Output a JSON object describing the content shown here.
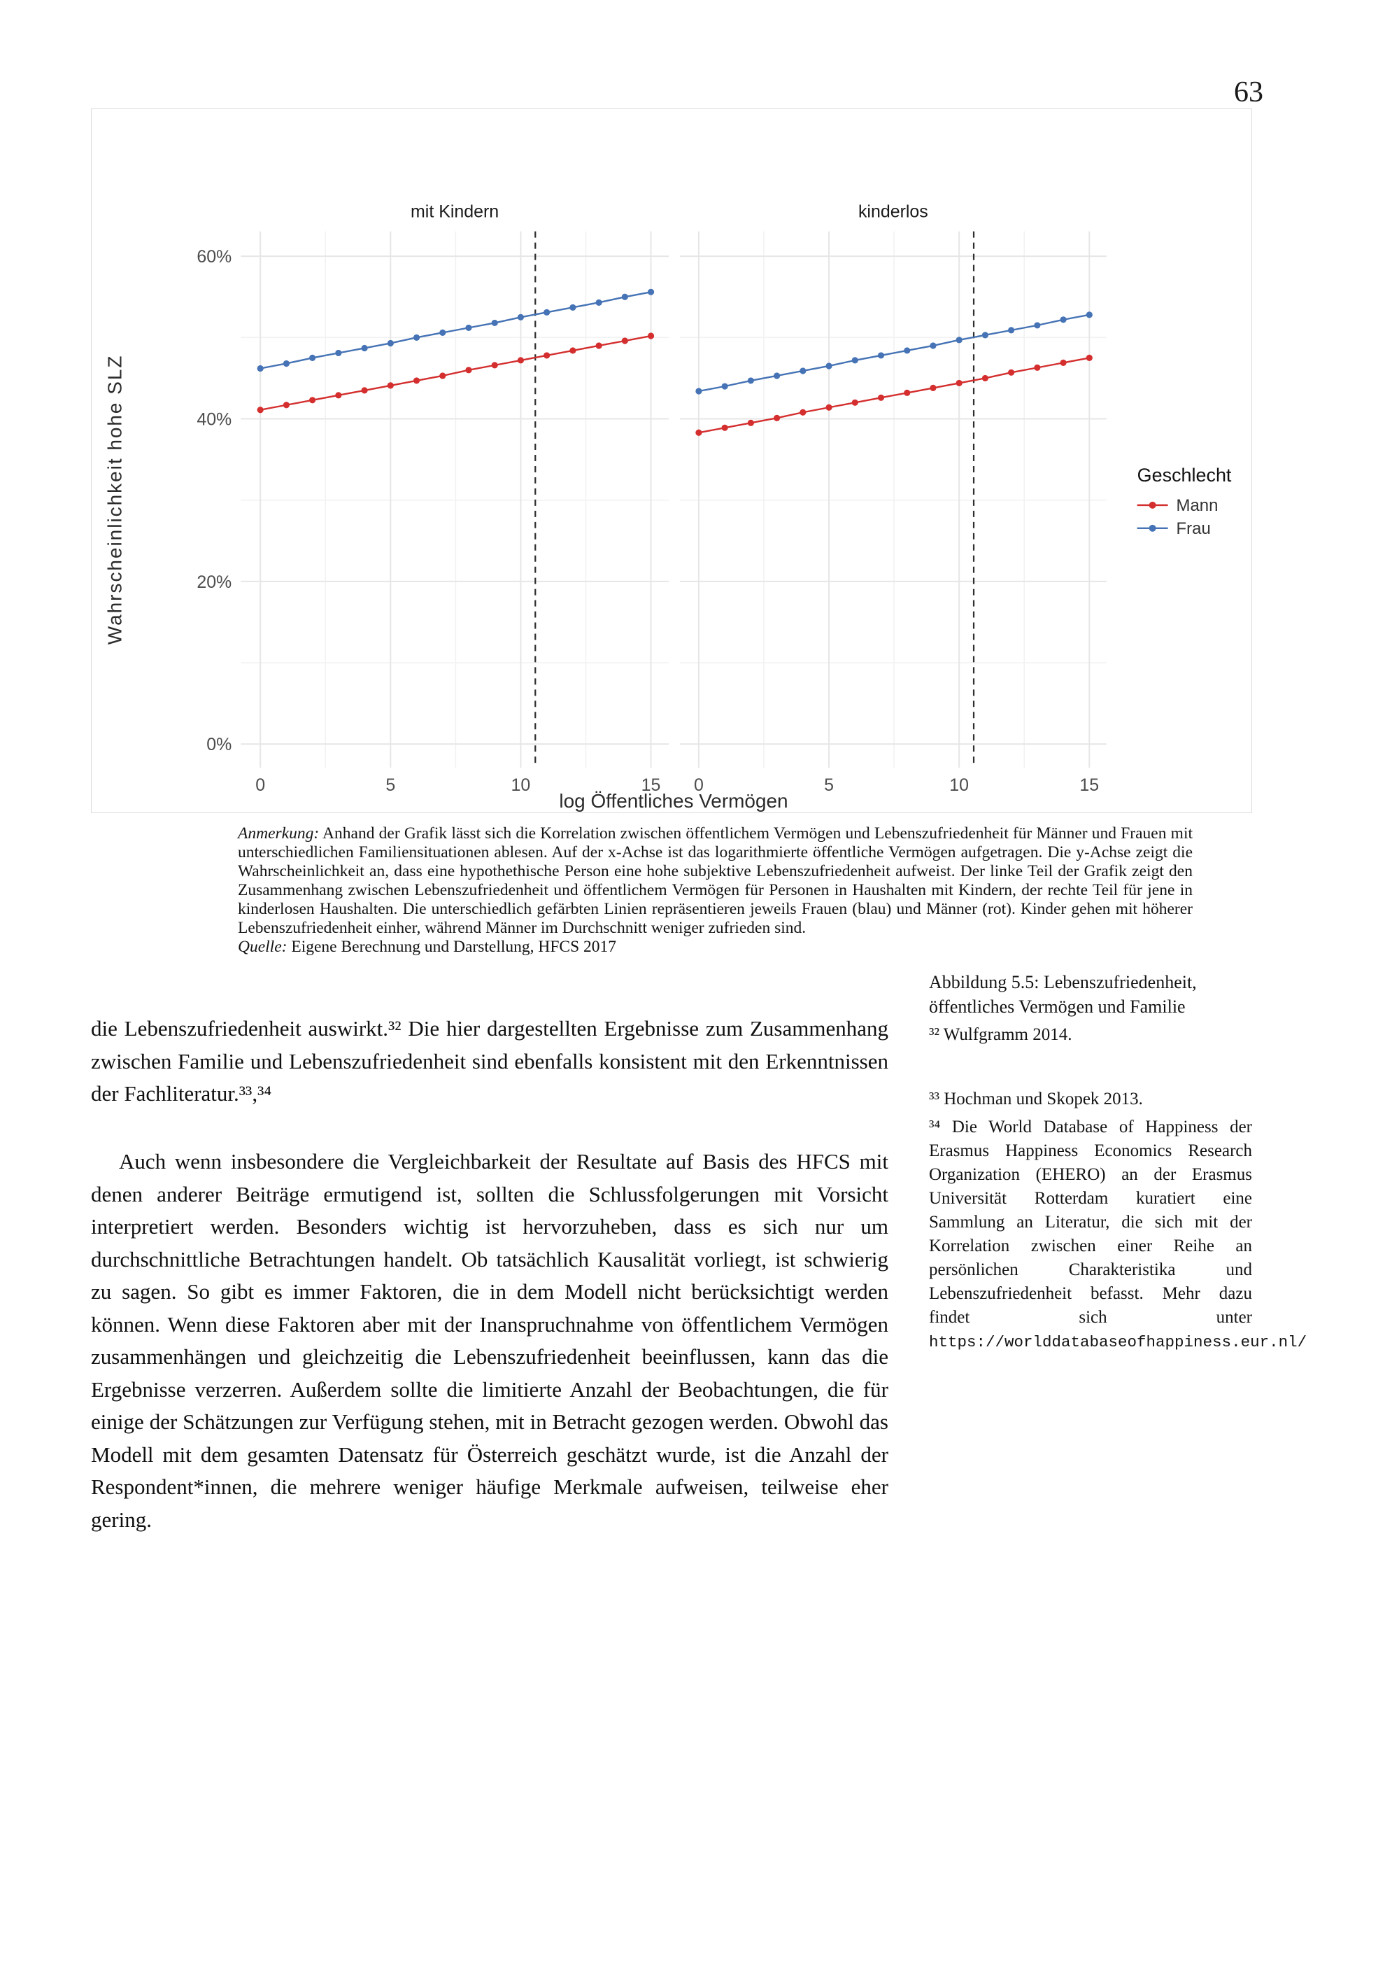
{
  "page": {
    "number": "63"
  },
  "figure": {
    "note": {
      "anmerkung_label": "Anmerkung:",
      "anmerkung_text": " Anhand der Grafik lässt sich die Korrelation zwischen öffentlichem Vermögen und Lebenszufriedenheit für Männer und Frauen mit unterschiedlichen Familiensituationen ablesen. Auf der x-Achse ist das logarithmierte öffentliche Vermögen aufgetragen. Die y-Achse zeigt die Wahrscheinlichkeit an, dass eine hypothethische Person eine hohe subjektive Lebenszufriedenheit aufweist. Der linke Teil der Grafik zeigt den Zusammenhang zwischen Lebenszufriedenheit und öffentlichem Vermögen für Personen in Haushalten mit Kindern, der rechte Teil für jene in kinderlosen Haushalten. Die unterschiedlich gefärbten Linien repräsentieren jeweils Frauen (blau) und Männer (rot). Kinder gehen mit höherer Lebenszufriedenheit einher, während Männer im Durchschnitt weniger zufrieden sind.",
      "quelle_label": "Quelle:",
      "quelle_text": " Eigene Berechnung und Darstellung, HFCS 2017"
    }
  },
  "chart_data": {
    "type": "line",
    "xlabel": "log Öffentliches Vermögen",
    "ylabel": "Wahrscheinlichkeit hohe SLZ",
    "x": [
      0,
      1,
      2,
      3,
      4,
      5,
      6,
      7,
      8,
      9,
      10,
      11,
      12,
      13,
      14,
      15
    ],
    "x_ticks": [
      0,
      5,
      10,
      15
    ],
    "y_ticks_pct": [
      0,
      20,
      40,
      60
    ],
    "y_tick_labels": [
      "0%",
      "20%",
      "40%",
      "60%"
    ],
    "ylim_pct": [
      -3,
      63
    ],
    "grid": true,
    "legend_position": "right",
    "colors": {
      "mann": "#d42e2e",
      "frau": "#4573b5",
      "grid_major": "#e6e6e6",
      "grid_minor": "#f2f2f2",
      "vline": "#2e2e2e"
    },
    "legend": {
      "title": "Geschlecht",
      "items": [
        {
          "label": "Mann",
          "color": "#d42e2e"
        },
        {
          "label": "Frau",
          "color": "#4573b5"
        }
      ]
    },
    "facets": [
      {
        "label": "mit Kindern",
        "vline_x": 10.56,
        "series": [
          {
            "name": "Mann",
            "color": "#d42e2e",
            "values": [
              41.1,
              41.7,
              42.3,
              42.9,
              43.5,
              44.1,
              44.7,
              45.3,
              46.0,
              46.6,
              47.2,
              47.8,
              48.4,
              49.0,
              49.6,
              50.2
            ]
          },
          {
            "name": "Frau",
            "color": "#4573b5",
            "values": [
              46.2,
              46.8,
              47.5,
              48.1,
              48.7,
              49.3,
              50.0,
              50.6,
              51.2,
              51.8,
              52.5,
              53.1,
              53.7,
              54.3,
              55.0,
              55.6
            ]
          }
        ]
      },
      {
        "label": "kinderlos",
        "vline_x": 10.56,
        "series": [
          {
            "name": "Mann",
            "color": "#d42e2e",
            "values": [
              38.3,
              38.9,
              39.5,
              40.1,
              40.8,
              41.4,
              42.0,
              42.6,
              43.2,
              43.8,
              44.4,
              45.0,
              45.7,
              46.3,
              46.9,
              47.5
            ]
          },
          {
            "name": "Frau",
            "color": "#4573b5",
            "values": [
              43.4,
              44.0,
              44.7,
              45.3,
              45.9,
              46.5,
              47.2,
              47.8,
              48.4,
              49.0,
              49.7,
              50.3,
              50.9,
              51.5,
              52.2,
              52.8
            ]
          }
        ]
      }
    ]
  },
  "margin_notes": {
    "figure_caption": "Abbildung 5.5: Lebenszufriedenheit, öffentliches Vermögen und Familie",
    "note32": "³² Wulfgramm 2014.",
    "note33": "³³ Hochman und Skopek 2013.",
    "note34_text": "³⁴ Die World Database of Happiness der Erasmus Happiness Economics Research Organization (EHERO) an der Erasmus Universität Rotterdam kuratiert eine Sammlung an Literatur, die sich mit der Korrelation zwischen einer Reihe an persönlichen Charakteristika und Lebenszufriedenheit befasst. Mehr dazu findet sich unter ",
    "note34_url": "https://worlddatabaseofhappiness.eur.nl/"
  },
  "body": {
    "paragraph1": "die Lebenszufriedenheit auswirkt.³² Die hier dargestellten Ergebnisse zum Zusammenhang zwischen Familie und Lebenszufriedenheit sind ebenfalls konsistent mit den Erkenntnissen der Fachliteratur.³³,³⁴",
    "paragraph2": "Auch wenn insbesondere die Vergleichbarkeit der Resultate auf Basis des HFCS mit denen anderer Beiträge ermutigend ist, sollten die Schlussfolgerungen mit Vorsicht interpretiert werden. Besonders wichtig ist hervorzuheben, dass es sich nur um durchschnittliche Betrachtungen handelt. Ob tatsächlich Kausalität vorliegt, ist schwierig zu sagen. So gibt es immer Faktoren, die in dem Modell nicht berücksichtigt werden können. Wenn diese Faktoren aber mit der Inanspruchnahme von öffentlichem Vermögen zusammenhängen und gleichzeitig die Lebenszufriedenheit beeinflussen, kann das die Ergebnisse verzerren. Außerdem sollte die limitierte Anzahl der Beobachtungen, die für einige der Schätzungen zur Verfügung stehen, mit in Betracht gezogen werden. Obwohl das Modell mit dem gesamten Datensatz für Österreich geschätzt wurde, ist die Anzahl der Respondent*innen, die mehrere weniger häufige Merkmale aufweisen, teilweise eher gering."
  }
}
